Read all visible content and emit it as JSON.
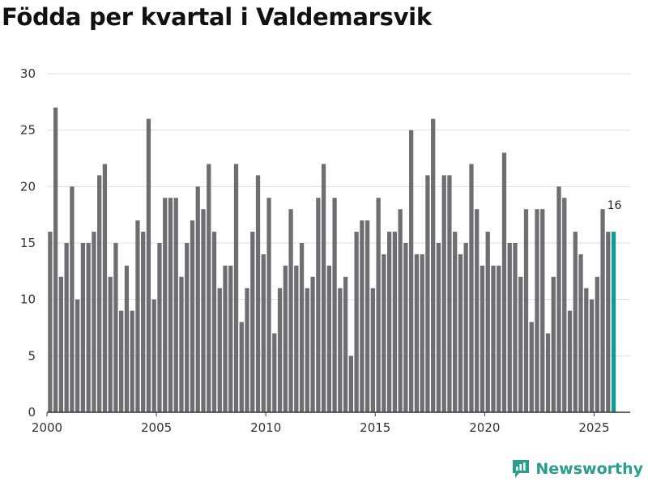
{
  "title": "Födda per kvartal i Valdemarsvik",
  "brand": {
    "name": "Newsworthy",
    "icon": "newsworthy-logo-icon"
  },
  "colors": {
    "bar": "#6e6d72",
    "highlight": "#139a8e",
    "grid": "#dddddd",
    "axis": "#333333",
    "brand": "#2a9d8f"
  },
  "chart_data": {
    "type": "bar",
    "title": "Födda per kvartal i Valdemarsvik",
    "xlabel": "",
    "ylabel": "",
    "ylim": [
      0,
      30
    ],
    "yticks": [
      0,
      5,
      10,
      15,
      20,
      25,
      30
    ],
    "xticks": [
      2000,
      2005,
      2010,
      2015,
      2020,
      2025
    ],
    "first_period": {
      "year": 2000,
      "quarter": 1
    },
    "values": [
      16,
      27,
      12,
      15,
      20,
      10,
      15,
      15,
      16,
      21,
      22,
      12,
      15,
      9,
      13,
      9,
      17,
      16,
      26,
      10,
      15,
      19,
      19,
      19,
      12,
      15,
      17,
      20,
      18,
      22,
      16,
      11,
      13,
      13,
      22,
      8,
      11,
      16,
      21,
      14,
      19,
      7,
      11,
      13,
      18,
      13,
      15,
      11,
      12,
      19,
      22,
      13,
      19,
      11,
      12,
      5,
      16,
      17,
      17,
      11,
      19,
      14,
      16,
      16,
      18,
      15,
      25,
      14,
      14,
      21,
      26,
      15,
      21,
      21,
      16,
      14,
      15,
      22,
      18,
      13,
      16,
      13,
      13,
      23,
      15,
      15,
      12,
      18,
      8,
      18,
      18,
      7,
      12,
      20,
      19,
      9,
      16,
      14,
      11,
      10,
      12,
      18,
      16,
      16
    ],
    "highlight_last": true,
    "last_label": "16"
  }
}
